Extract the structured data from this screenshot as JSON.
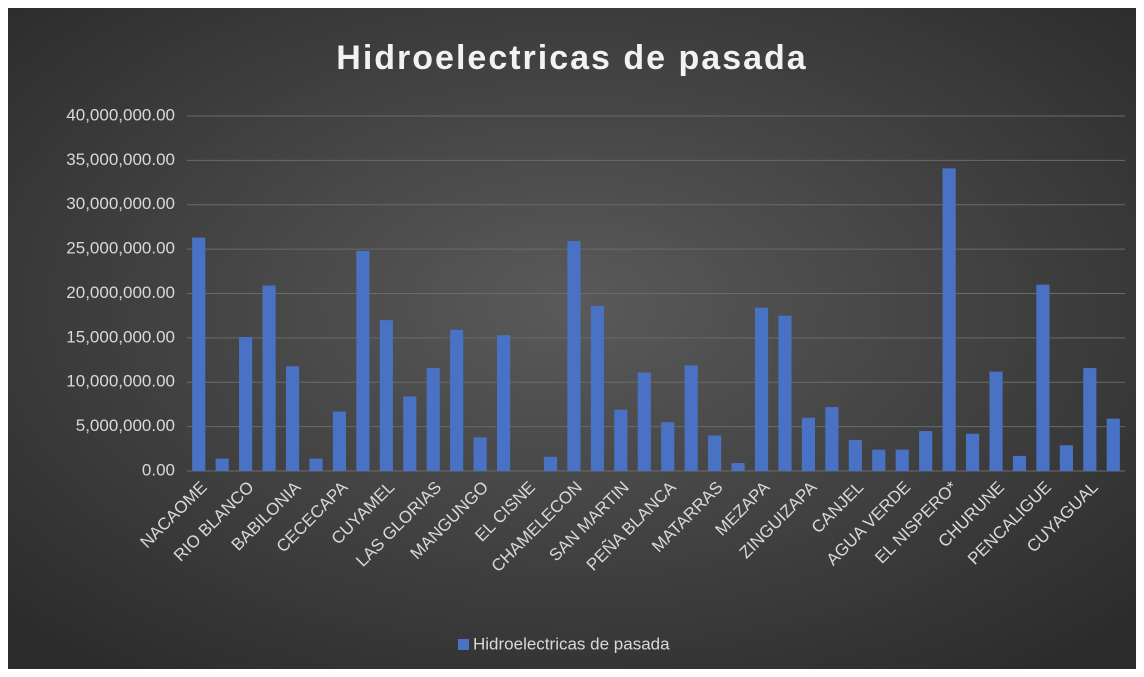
{
  "chart_data": {
    "type": "bar",
    "title": "Hidroelectricas de pasada",
    "categories": [
      "NACAOME",
      null,
      "RIO BLANCO",
      null,
      "BABILONIA",
      null,
      "CECECAPA",
      null,
      "CUYAMEL",
      null,
      "LAS GLORIAS",
      null,
      "MANGUNGO",
      null,
      "EL CISNE",
      null,
      "CHAMELECON",
      null,
      "SAN MARTIN",
      null,
      "PEÑA BLANCA",
      null,
      "MATARRAS",
      null,
      "MEZAPA",
      null,
      "ZINGUIZAPA",
      null,
      "CANJEL",
      null,
      "AGUA VERDE",
      null,
      "EL NISPERO*",
      null,
      "CHURUNE",
      null,
      "PENCALIGUE",
      null,
      "CUYAGUAL",
      null
    ],
    "series": [
      {
        "name": "Hidroelectricas de pasada",
        "color": "#4a72c4",
        "values": [
          26300000,
          1400000,
          15100000,
          20900000,
          11800000,
          1400000,
          6700000,
          24800000,
          17000000,
          8400000,
          11600000,
          15900000,
          3800000,
          15300000,
          0,
          1600000,
          25900000,
          18600000,
          6900000,
          11100000,
          5500000,
          11900000,
          4000000,
          900000,
          18400000,
          17500000,
          6000000,
          7200000,
          3500000,
          2400000,
          2400000,
          4500000,
          34100000,
          4200000,
          11200000,
          1700000,
          21000000,
          2900000,
          11600000,
          5900000
        ]
      }
    ],
    "ylim": [
      0,
      40000000
    ],
    "yticks": [
      {
        "value": 0,
        "label": "0.00"
      },
      {
        "value": 5000000,
        "label": "5,000,000.00"
      },
      {
        "value": 10000000,
        "label": "10,000,000.00"
      },
      {
        "value": 15000000,
        "label": "15,000,000.00"
      },
      {
        "value": 20000000,
        "label": "20,000,000.00"
      },
      {
        "value": 25000000,
        "label": "25,000,000.00"
      },
      {
        "value": 30000000,
        "label": "30,000,000.00"
      },
      {
        "value": 35000000,
        "label": "35,000,000.00"
      },
      {
        "value": 40000000,
        "label": "40,000,000.00"
      }
    ],
    "grid": true,
    "legend": "bottom"
  }
}
